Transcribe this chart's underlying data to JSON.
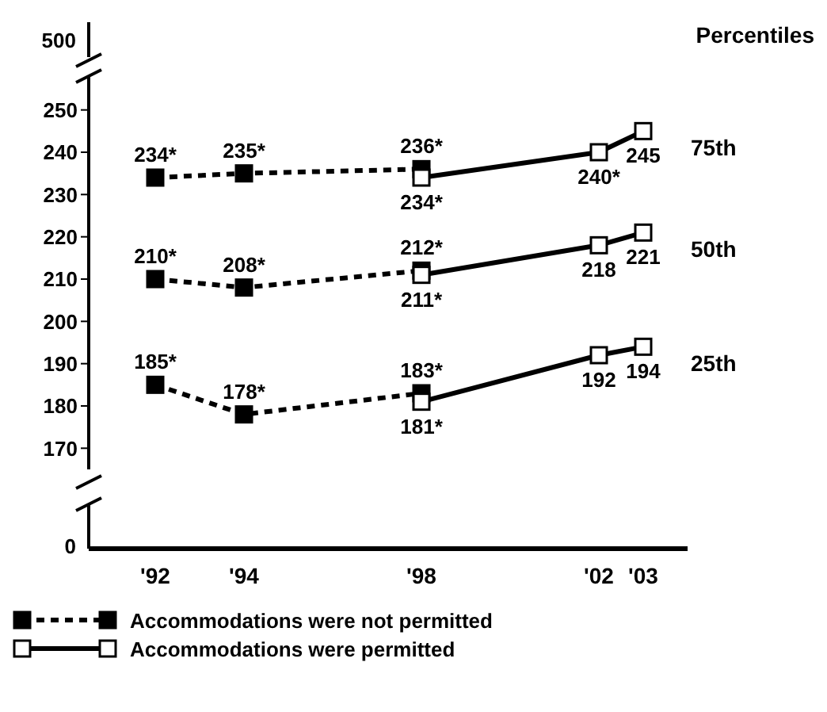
{
  "chart_data": {
    "type": "line",
    "title": "Percentiles",
    "x": [
      1992,
      1994,
      1998,
      2002,
      2003
    ],
    "xlim": [
      1990.5,
      2004
    ],
    "ylim": [
      165,
      255
    ],
    "yticks": [
      170,
      180,
      190,
      200,
      210,
      220,
      230,
      240,
      250
    ],
    "xticks": [
      {
        "value": 1992,
        "label": "'92"
      },
      {
        "value": 1994,
        "label": "'94"
      },
      {
        "value": 1998,
        "label": "'98"
      },
      {
        "value": 2002,
        "label": "'02"
      },
      {
        "value": 2003,
        "label": "'03"
      }
    ],
    "legend": "bottom",
    "marker": "square",
    "series": [
      {
        "name": "Accommodations were not permitted",
        "color": "#000000",
        "line_style": "dashed",
        "values": [
          234,
          235,
          236,
          null,
          null
        ],
        "value_labels": [
          "234*",
          "235*",
          "236*",
          null,
          null
        ]
      },
      {
        "name": "Accommodations were permitted",
        "color": "#000000",
        "line_style": "solid",
        "values": [
          null,
          null,
          234,
          240,
          245
        ],
        "value_labels": [
          null,
          null,
          "234*",
          "240*",
          "245"
        ]
      },
      {
        "color": "#000000",
        "line_style": "dashed",
        "values": [
          210,
          208,
          212,
          null,
          null
        ],
        "value_labels": [
          "210*",
          "208*",
          "212*",
          null,
          null
        ]
      },
      {
        "color": "#000000",
        "line_style": "solid",
        "values": [
          null,
          null,
          211,
          218,
          221
        ],
        "value_labels": [
          null,
          null,
          "211*",
          "218",
          "221"
        ]
      },
      {
        "color": "#000000",
        "line_style": "dashed",
        "values": [
          185,
          178,
          183,
          null,
          null
        ],
        "value_labels": [
          "185*",
          "178*",
          "183*",
          null,
          null
        ]
      },
      {
        "color": "#000000",
        "line_style": "solid",
        "values": [
          null,
          null,
          181,
          192,
          194
        ],
        "value_labels": [
          null,
          null,
          "181*",
          "192",
          "194"
        ]
      }
    ],
    "annotations": [
      "500",
      "0",
      "75th",
      "50th",
      "25th"
    ]
  }
}
